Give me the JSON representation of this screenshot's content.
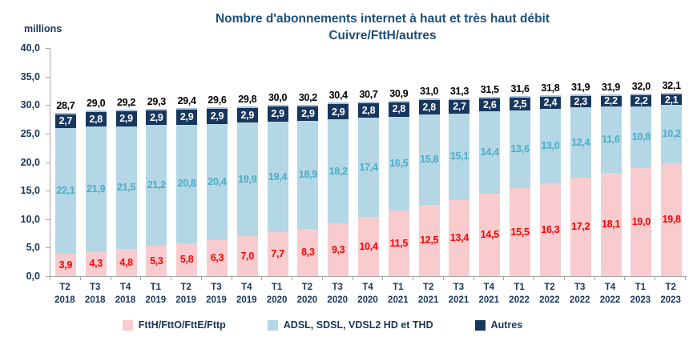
{
  "title": {
    "line1": "Nombre d'abonnements internet à haut et très haut débit",
    "line2": "Cuivre/FttH/autres",
    "color": "#1F4E79"
  },
  "y_axis": {
    "unit_label": "millions",
    "tick_labels": [
      "40,0",
      "35,0",
      "30,0",
      "25,0",
      "20,0",
      "15,0",
      "10,0",
      "5,0",
      "0,0"
    ]
  },
  "chart_data": {
    "type": "bar",
    "stacked": true,
    "title": "Nombre d'abonnements internet à haut et très haut débit Cuivre/FttH/autres",
    "ylabel": "millions",
    "ylim": [
      0,
      40
    ],
    "ytick_step": 5,
    "grid": false,
    "legend_position": "bottom",
    "categories": [
      "T2 2018",
      "T3 2018",
      "T4 2018",
      "T1 2019",
      "T2 2019",
      "T3 2019",
      "T4 2019",
      "T1 2020",
      "T2 2020",
      "T3 2020",
      "T4 2020",
      "T1 2021",
      "T2 2021",
      "T3 2021",
      "T4 2021",
      "T1 2022",
      "T2 2022",
      "T3 2022",
      "T4 2022",
      "T1 2023",
      "T2 2023"
    ],
    "series": [
      {
        "key": "ftth",
        "name": "FttH/FttO/FttE/Fttp",
        "color": "#F8CCCE",
        "label_color": "#FF0000",
        "values": [
          3.9,
          4.3,
          4.8,
          5.3,
          5.8,
          6.3,
          7.0,
          7.7,
          8.3,
          9.3,
          10.4,
          11.5,
          12.5,
          13.4,
          14.5,
          15.5,
          16.3,
          17.2,
          18.1,
          19.0,
          19.8
        ]
      },
      {
        "key": "adsl",
        "name": "ADSL, SDSL, VDSL2 HD et THD",
        "color": "#B3D7E5",
        "label_color": "#4BACC6",
        "values": [
          22.1,
          21.9,
          21.5,
          21.2,
          20.8,
          20.4,
          19.9,
          19.4,
          18.9,
          18.2,
          17.4,
          16.5,
          15.8,
          15.1,
          14.4,
          13.6,
          13.0,
          12.4,
          11.6,
          10.8,
          10.2
        ]
      },
      {
        "key": "autres",
        "name": "Autres",
        "color": "#17375E",
        "label_color": "#FFFFFF",
        "values": [
          2.7,
          2.8,
          2.9,
          2.9,
          2.9,
          2.9,
          2.9,
          2.9,
          2.9,
          2.9,
          2.8,
          2.8,
          2.8,
          2.7,
          2.6,
          2.5,
          2.4,
          2.3,
          2.2,
          2.2,
          2.1
        ]
      }
    ],
    "totals": {
      "color": "#000000",
      "values": [
        28.7,
        29.0,
        29.2,
        29.3,
        29.4,
        29.6,
        29.8,
        30.0,
        30.2,
        30.4,
        30.7,
        30.9,
        31.0,
        31.3,
        31.5,
        31.6,
        31.8,
        31.9,
        31.9,
        32.0,
        32.1
      ]
    }
  }
}
